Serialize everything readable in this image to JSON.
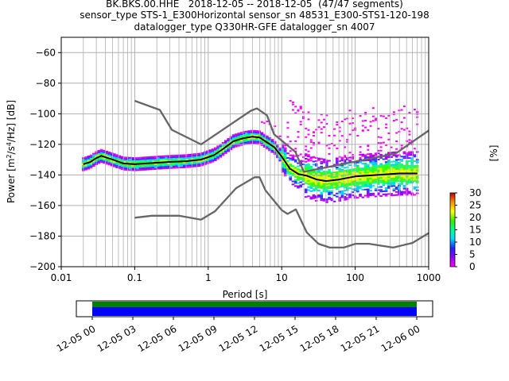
{
  "chart_data": {
    "type": "heatmap",
    "title_lines": [
      "BK.BKS.00.HHE   2018-12-05 -- 2018-12-05  (47/47 segments)",
      "sensor_type STS-1_E300Horizontal sensor_sn 48531_E300-STS1-120-198",
      "datalogger_type Q330HR-GFE datalogger_sn 4007"
    ],
    "xlabel": "Period [s]",
    "ylabel_parts": {
      "pre": "Power [m",
      "sup1": "2",
      "mid": "/s",
      "sup2": "4",
      "post": "/Hz] [dB]"
    },
    "x_scale": "log",
    "xlim": [
      0.01,
      1000
    ],
    "ylim": [
      -200,
      -50
    ],
    "x_ticks": [
      {
        "v": 0.01,
        "label": "0.01"
      },
      {
        "v": 0.1,
        "label": "0.1"
      },
      {
        "v": 1,
        "label": "1"
      },
      {
        "v": 10,
        "label": "10"
      },
      {
        "v": 100,
        "label": "100"
      },
      {
        "v": 1000,
        "label": "1000"
      }
    ],
    "y_ticks": [
      -200,
      -180,
      -160,
      -140,
      -120,
      -100,
      -80,
      -60
    ],
    "grid": true,
    "colorbar": {
      "label": "[%]",
      "min": 0,
      "max": 30,
      "ticks": [
        0,
        5,
        10,
        15,
        20,
        25,
        30
      ]
    },
    "series": [
      {
        "role": "nhnm",
        "color": "#666666",
        "points": [
          [
            0.1,
            -91.5
          ],
          [
            0.22,
            -97.5
          ],
          [
            0.32,
            -110.5
          ],
          [
            0.8,
            -120
          ],
          [
            3.8,
            -98
          ],
          [
            4.6,
            -96.5
          ],
          [
            6.3,
            -101
          ],
          [
            7.9,
            -113.5
          ],
          [
            15.4,
            -125
          ],
          [
            20,
            -138
          ],
          [
            354.8,
            -126
          ],
          [
            1000,
            -111
          ]
        ]
      },
      {
        "role": "nlnm",
        "color": "#666666",
        "points": [
          [
            0.1,
            -168
          ],
          [
            0.17,
            -166.7
          ],
          [
            0.4,
            -166.7
          ],
          [
            0.8,
            -169.2
          ],
          [
            1.24,
            -163.7
          ],
          [
            2.4,
            -148.6
          ],
          [
            4.3,
            -141.5
          ],
          [
            5,
            -141.5
          ],
          [
            6,
            -150
          ],
          [
            10,
            -163
          ],
          [
            12,
            -165.5
          ],
          [
            15.6,
            -162.5
          ],
          [
            21.9,
            -177.6
          ],
          [
            31.6,
            -185
          ],
          [
            45,
            -187.5
          ],
          [
            70,
            -187.5
          ],
          [
            101,
            -185
          ],
          [
            154,
            -185
          ],
          [
            328,
            -187.5
          ],
          [
            600,
            -184.5
          ],
          [
            1000,
            -178
          ]
        ]
      },
      {
        "role": "mean",
        "color": "#000000",
        "points": [
          [
            0.02,
            -133
          ],
          [
            0.025,
            -131.5
          ],
          [
            0.03,
            -129
          ],
          [
            0.035,
            -127.5
          ],
          [
            0.05,
            -130
          ],
          [
            0.07,
            -132.5
          ],
          [
            0.1,
            -133
          ],
          [
            0.2,
            -132
          ],
          [
            0.3,
            -131.5
          ],
          [
            0.5,
            -131
          ],
          [
            0.8,
            -130
          ],
          [
            1.2,
            -127
          ],
          [
            1.6,
            -123
          ],
          [
            2.2,
            -118
          ],
          [
            3,
            -116
          ],
          [
            4,
            -115
          ],
          [
            5,
            -115.5
          ],
          [
            6,
            -118
          ],
          [
            8,
            -122
          ],
          [
            10,
            -128
          ],
          [
            13,
            -136
          ],
          [
            17,
            -139.5
          ],
          [
            22,
            -140.5
          ],
          [
            30,
            -143
          ],
          [
            40,
            -144
          ],
          [
            60,
            -143
          ],
          [
            100,
            -141
          ],
          [
            200,
            -140
          ],
          [
            400,
            -139
          ],
          [
            700,
            -139
          ]
        ]
      }
    ],
    "time_axis": {
      "labels": [
        "12-05 00",
        "12-05 03",
        "12-05 06",
        "12-05 09",
        "12-05 12",
        "12-05 15",
        "12-05 18",
        "12-05 21",
        "12-06 00"
      ],
      "coverage_color": "#008000",
      "gap_color": "#0000ff",
      "coverage_fraction": 1.0
    }
  }
}
